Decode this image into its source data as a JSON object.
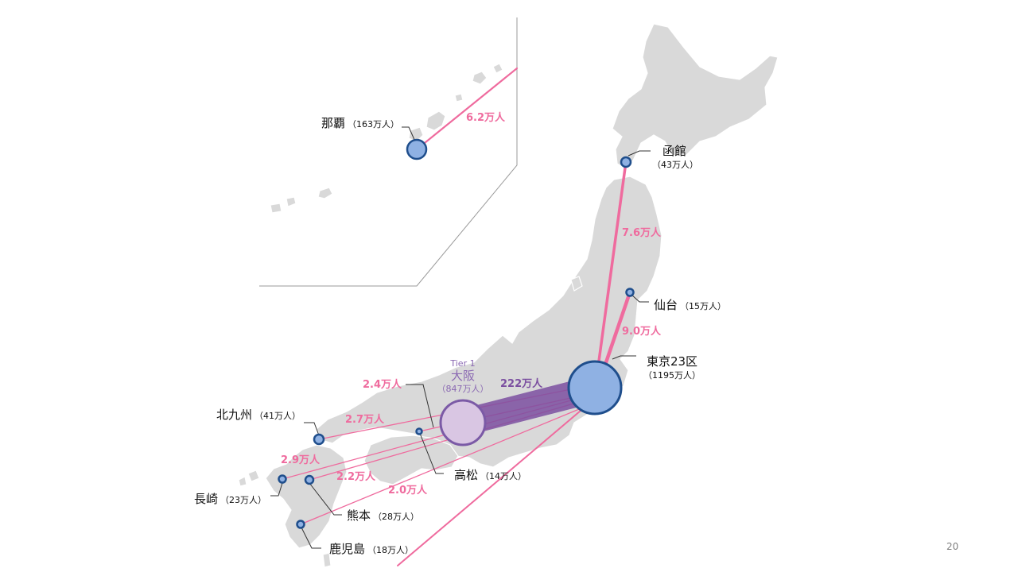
{
  "colors": {
    "land": "#d9d9d9",
    "route": "#ef6b9e",
    "route_osaka": "#7b4fa0",
    "city_fill": "#8fb1e3",
    "city_stroke": "#1f4e8c",
    "osaka_fill": "#d9c6e3",
    "osaka_text": "#8a68b2"
  },
  "hubs": {
    "tokyo": {
      "name": "東京23区",
      "pop": "（1195万人）"
    },
    "osaka": {
      "tier": "Tier 1",
      "name": "大阪",
      "pop": "（847万人）",
      "flow": "222万人"
    }
  },
  "cities": {
    "naha": {
      "name": "那覇",
      "pop": "（163万人）",
      "flow": "6.2万人"
    },
    "hakodate": {
      "name": "函館",
      "pop": "（43万人）",
      "flow": "7.6万人"
    },
    "sendai": {
      "name": "仙台",
      "pop": "（15万人）",
      "flow": "9.0万人"
    },
    "takamatsu": {
      "name": "高松",
      "pop": "（14万人）",
      "flow": "2.4万人"
    },
    "kitakyushu": {
      "name": "北九州",
      "pop": "（41万人）",
      "flow": "2.7万人"
    },
    "nagasaki": {
      "name": "長崎",
      "pop": "（23万人）",
      "flow": "2.9万人"
    },
    "kumamoto": {
      "name": "熊本",
      "pop": "（28万人）",
      "flow": "2.2万人"
    },
    "kagoshima": {
      "name": "鹿児島",
      "pop": "（18万人）",
      "flow": "2.0万人"
    }
  },
  "page_number": "20"
}
